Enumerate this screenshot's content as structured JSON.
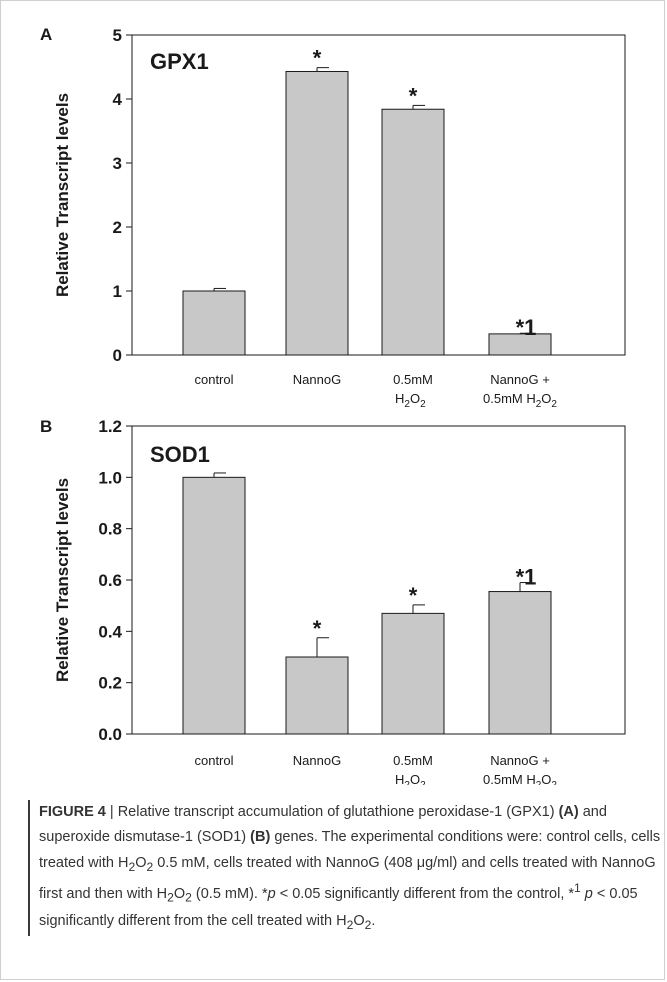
{
  "chart_data": [
    {
      "type": "bar",
      "panel_letter": "A",
      "title": "GPX1",
      "ylabel": "Relative Transcript levels",
      "categories": [
        {
          "line1": "control",
          "line2": "",
          "h2o2": false
        },
        {
          "line1": "NannoG",
          "line2": "",
          "h2o2": false
        },
        {
          "line1": "0.5mM",
          "line2": "",
          "h2o2": true
        },
        {
          "line1": "NannoG  +",
          "line2": "0.5mM ",
          "h2o2": true
        }
      ],
      "values": [
        1.0,
        4.43,
        3.84,
        0.33
      ],
      "errors": [
        0.04,
        0.06,
        0.06,
        0.01
      ],
      "annotations": [
        "",
        "*",
        "*",
        "*1"
      ],
      "ylim": [
        0,
        5
      ],
      "yticks": [
        "0",
        "1",
        "2",
        "3",
        "4",
        "5"
      ],
      "grid": false
    },
    {
      "type": "bar",
      "panel_letter": "B",
      "title": "SOD1",
      "ylabel": "Relative Transcript levels",
      "categories": [
        {
          "line1": "control",
          "line2": "",
          "h2o2": false
        },
        {
          "line1": "NannoG",
          "line2": "",
          "h2o2": false
        },
        {
          "line1": "0.5mM",
          "line2": "",
          "h2o2": true
        },
        {
          "line1": "NannoG  +",
          "line2": "0.5mM ",
          "h2o2": true
        }
      ],
      "values": [
        1.0,
        0.3,
        0.47,
        0.555
      ],
      "errors": [
        0.017,
        0.075,
        0.033,
        0.035
      ],
      "annotations": [
        "",
        "*",
        "*",
        "*1"
      ],
      "ylim": [
        0,
        1.2
      ],
      "yticks": [
        "0.0",
        "0.2",
        "0.4",
        "0.6",
        "0.8",
        "1.0",
        "1.2"
      ],
      "grid": false
    }
  ],
  "colors": {
    "bar_fill": "#c8c8c8",
    "bar_stroke": "#1a1a1a",
    "axis": "#1a1a1a",
    "caption_text": "#333333"
  },
  "caption": {
    "label": "FIGURE 4",
    "t1": "Relative transcript accumulation of glutathione peroxidase-1 (GPX1) ",
    "ref_a": "(A)",
    "t2": " and superoxide dismutase-1 (SOD1) ",
    "ref_b": "(B)",
    "t3": " genes. The experimental conditions were: control cells, cells treated with ",
    "t4": " 0.5 mM, cells treated with NannoG (408 μg/ml) and cells treated with NannoG first and then with ",
    "t5": " (0.5 mM). *",
    "p": "p",
    "t6": " < 0.05 significantly different from the control, *",
    "sup": "1",
    "t7": " < 0.05 significantly different from the cell treated with ",
    "t8": "."
  }
}
